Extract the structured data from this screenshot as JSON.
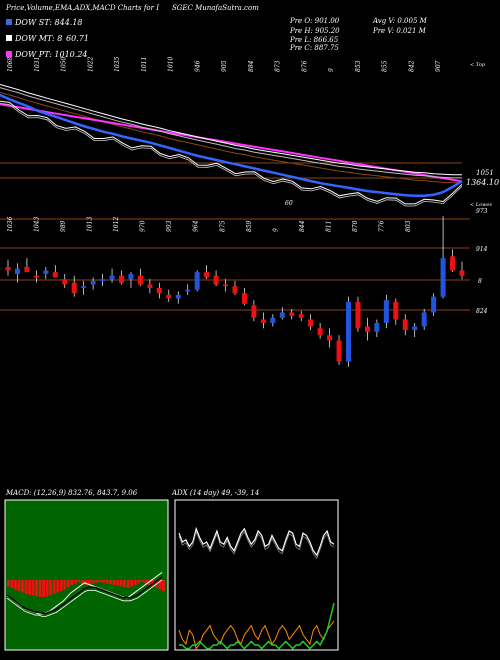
{
  "header": {
    "title": "Price,Volume,EMA,ADX,MACD Charts for I",
    "site": "SGEC MunafaSutra.com"
  },
  "legend": [
    {
      "label": "DOW ST: 844.18",
      "value": "",
      "color": "#3a6ae0"
    },
    {
      "label": "DOW MT: 8",
      "value": "60.71",
      "color": "#ffffff"
    },
    {
      "label": "DOW PT: 1010.24",
      "value": "",
      "color": "#ff33ff"
    }
  ],
  "info": {
    "prev_open": "Pre O: 901.00",
    "prev_high": "Pre H: 905.20",
    "prev_low": "Pre L: 866.65",
    "prev_close": "Pre C: 887.75",
    "avg_vol": "Avg V: 0.005 M",
    "prev_vol": "Pre V: 0.021 M"
  },
  "colors": {
    "bull": "#2255dd",
    "bear": "#ee1111",
    "level_line": "#8b4513",
    "ma_short": "#3366ff",
    "ma_mid": "#ffffff",
    "ma_long": "#ff33ff",
    "ma_brown": "#8b4513",
    "adx_pos": "#ffffff",
    "adx_neg": "#ff8c00",
    "adx_green": "#22cc22"
  },
  "chart_data": [
    {
      "type": "line",
      "title": "EMA",
      "top_labels": [
        "1068",
        "1031",
        "1050",
        "1022",
        "1035",
        "1011",
        "1010",
        "946",
        "905",
        "884",
        "873",
        "876",
        "9",
        "853",
        "855",
        "842",
        "907"
      ],
      "edge_label": "< Top",
      "y_labels": [
        "1051",
        "1364.10",
        "60"
      ],
      "series": [
        {
          "name": "DOW PT",
          "values": [
            1012,
            1009,
            1006,
            1003,
            1000,
            997,
            994,
            991,
            988,
            985,
            982,
            979,
            976,
            973,
            970,
            967,
            964,
            961,
            958,
            955,
            952,
            949,
            946,
            943,
            940,
            937,
            934,
            931,
            928,
            925,
            922,
            919,
            916,
            913,
            910,
            907,
            904,
            901,
            898,
            895,
            892,
            889,
            886,
            883,
            880,
            877,
            874,
            871,
            868,
            865
          ]
        },
        {
          "name": "DOW MT",
          "values": [
            1040,
            1035,
            1030,
            1024,
            1019,
            1014,
            1009,
            1004,
            999,
            994,
            989,
            984,
            979,
            974,
            970,
            965,
            961,
            957,
            952,
            948,
            944,
            940,
            936,
            932,
            928,
            924,
            921,
            917,
            914,
            911,
            908,
            905,
            902,
            899,
            896,
            893,
            890,
            888,
            885,
            883,
            881,
            879,
            877,
            875,
            873,
            872,
            870,
            869,
            868,
            868
          ]
        },
        {
          "name": "DOW ST",
          "values": [
            1020,
            1012,
            1005,
            998,
            990,
            984,
            978,
            972,
            966,
            960,
            955,
            950,
            946,
            941,
            937,
            933,
            929,
            924,
            919,
            914,
            909,
            904,
            900,
            896,
            892,
            888,
            884,
            880,
            876,
            872,
            868,
            864,
            860,
            856,
            852,
            849,
            846,
            843,
            840,
            837,
            835,
            833,
            831,
            829,
            828,
            828,
            830,
            835,
            845,
            856
          ]
        }
      ]
    },
    {
      "type": "bar",
      "title": "Price",
      "top_labels": [
        "1036",
        "1043",
        "989",
        "1013",
        "1012",
        "970",
        "993",
        "964",
        "875",
        "859",
        "9",
        "844",
        "811",
        "870",
        "776",
        "803"
      ],
      "edge_label": "< Lowes",
      "y_labels": [
        "973",
        "914",
        "8",
        "824"
      ],
      "candles": [
        {
          "o": 920,
          "h": 928,
          "l": 910,
          "c": 916
        },
        {
          "o": 912,
          "h": 924,
          "l": 902,
          "c": 918
        },
        {
          "o": 920,
          "h": 930,
          "l": 914,
          "c": 914
        },
        {
          "o": 910,
          "h": 916,
          "l": 902,
          "c": 908
        },
        {
          "o": 912,
          "h": 920,
          "l": 906,
          "c": 916
        },
        {
          "o": 914,
          "h": 922,
          "l": 908,
          "c": 908
        },
        {
          "o": 906,
          "h": 912,
          "l": 896,
          "c": 900
        },
        {
          "o": 902,
          "h": 910,
          "l": 886,
          "c": 890
        },
        {
          "o": 896,
          "h": 904,
          "l": 888,
          "c": 898
        },
        {
          "o": 900,
          "h": 908,
          "l": 894,
          "c": 904
        },
        {
          "o": 904,
          "h": 912,
          "l": 898,
          "c": 906
        },
        {
          "o": 906,
          "h": 918,
          "l": 902,
          "c": 910
        },
        {
          "o": 910,
          "h": 916,
          "l": 900,
          "c": 902
        },
        {
          "o": 906,
          "h": 914,
          "l": 896,
          "c": 912
        },
        {
          "o": 910,
          "h": 918,
          "l": 898,
          "c": 900
        },
        {
          "o": 900,
          "h": 906,
          "l": 890,
          "c": 896
        },
        {
          "o": 896,
          "h": 902,
          "l": 884,
          "c": 890
        },
        {
          "o": 888,
          "h": 894,
          "l": 880,
          "c": 884
        },
        {
          "o": 884,
          "h": 892,
          "l": 878,
          "c": 888
        },
        {
          "o": 892,
          "h": 900,
          "l": 888,
          "c": 894
        },
        {
          "o": 894,
          "h": 916,
          "l": 892,
          "c": 914
        },
        {
          "o": 914,
          "h": 922,
          "l": 906,
          "c": 908
        },
        {
          "o": 910,
          "h": 916,
          "l": 898,
          "c": 900
        },
        {
          "o": 900,
          "h": 906,
          "l": 892,
          "c": 898
        },
        {
          "o": 898,
          "h": 904,
          "l": 888,
          "c": 890
        },
        {
          "o": 890,
          "h": 896,
          "l": 876,
          "c": 878
        },
        {
          "o": 876,
          "h": 882,
          "l": 858,
          "c": 862
        },
        {
          "o": 860,
          "h": 868,
          "l": 850,
          "c": 856
        },
        {
          "o": 856,
          "h": 866,
          "l": 852,
          "c": 862
        },
        {
          "o": 862,
          "h": 874,
          "l": 860,
          "c": 868
        },
        {
          "o": 868,
          "h": 872,
          "l": 860,
          "c": 864
        },
        {
          "o": 866,
          "h": 870,
          "l": 858,
          "c": 862
        },
        {
          "o": 860,
          "h": 866,
          "l": 848,
          "c": 852
        },
        {
          "o": 850,
          "h": 856,
          "l": 838,
          "c": 842
        },
        {
          "o": 842,
          "h": 850,
          "l": 828,
          "c": 836
        },
        {
          "o": 836,
          "h": 842,
          "l": 808,
          "c": 812
        },
        {
          "o": 812,
          "h": 886,
          "l": 806,
          "c": 880
        },
        {
          "o": 880,
          "h": 886,
          "l": 846,
          "c": 850
        },
        {
          "o": 852,
          "h": 862,
          "l": 836,
          "c": 846
        },
        {
          "o": 846,
          "h": 860,
          "l": 840,
          "c": 856
        },
        {
          "o": 856,
          "h": 888,
          "l": 850,
          "c": 882
        },
        {
          "o": 880,
          "h": 884,
          "l": 854,
          "c": 860
        },
        {
          "o": 860,
          "h": 866,
          "l": 842,
          "c": 848
        },
        {
          "o": 848,
          "h": 856,
          "l": 840,
          "c": 852
        },
        {
          "o": 852,
          "h": 872,
          "l": 848,
          "c": 868
        },
        {
          "o": 868,
          "h": 890,
          "l": 864,
          "c": 886
        },
        {
          "o": 886,
          "h": 978,
          "l": 884,
          "c": 930
        },
        {
          "o": 932,
          "h": 940,
          "l": 914,
          "c": 916
        },
        {
          "o": 916,
          "h": 926,
          "l": 906,
          "c": 910
        }
      ]
    },
    {
      "type": "area",
      "title": "MACD",
      "header_text": "MACD:                     (12,26,9) 832.76, 843.7, 9.06",
      "series": [
        {
          "name": "MACD",
          "values": [
            -6,
            -8,
            -10,
            -12,
            -14,
            -16,
            -17,
            -18,
            -19,
            -20,
            -20,
            -19,
            -18,
            -16,
            -14,
            -12,
            -10,
            -7,
            -4,
            -2,
            0,
            2,
            4,
            3,
            2,
            1,
            0,
            -1,
            -2,
            -3,
            -4,
            -5,
            -6,
            -7,
            -8,
            -6,
            -4,
            -2,
            0,
            2,
            4,
            6,
            8,
            10,
            12
          ]
        },
        {
          "name": "Signal",
          "values": [
            -4,
            -6,
            -8,
            -10,
            -12,
            -14,
            -15,
            -16,
            -17,
            -17,
            -18,
            -18,
            -17,
            -16,
            -15,
            -13,
            -11,
            -9,
            -7,
            -5,
            -3,
            -1,
            1,
            2,
            2,
            2,
            1,
            0,
            -1,
            -2,
            -3,
            -4,
            -5,
            -6,
            -6,
            -6,
            -5,
            -4,
            -2,
            0,
            2,
            4,
            6,
            8,
            10
          ]
        },
        {
          "name": "Histogram",
          "values": [
            -2,
            -2,
            -2,
            -2,
            -2,
            -2,
            -2,
            -2,
            -2,
            -3,
            -2,
            -1,
            -1,
            0,
            1,
            1,
            1,
            2,
            3,
            3,
            3,
            3,
            3,
            1,
            0,
            -1,
            -1,
            -1,
            -1,
            -1,
            -1,
            -1,
            -1,
            -1,
            -2,
            0,
            1,
            2,
            2,
            2,
            2,
            2,
            2,
            2,
            2
          ]
        }
      ]
    },
    {
      "type": "line",
      "title": "ADX",
      "header_text": "ADX                    (14 day) 49, -39, 14",
      "series": [
        {
          "name": "+DI",
          "values": [
            38,
            30,
            32,
            26,
            30,
            42,
            34,
            28,
            30,
            24,
            32,
            40,
            30,
            28,
            34,
            26,
            22,
            30,
            38,
            42,
            34,
            28,
            32,
            40,
            36,
            26,
            28,
            36,
            30,
            24,
            22,
            32,
            40,
            38,
            28,
            26,
            38,
            36,
            30,
            22,
            18,
            26,
            36,
            40,
            30,
            28
          ]
        },
        {
          "name": "-DI",
          "values": [
            -12,
            -14,
            -15,
            -12,
            -13,
            -16,
            -15,
            -13,
            -12,
            -11,
            -13,
            -14,
            -15,
            -13,
            -12,
            -11,
            -12,
            -14,
            -15,
            -13,
            -12,
            -11,
            -13,
            -14,
            -12,
            -11,
            -13,
            -15,
            -14,
            -12,
            -11,
            -12,
            -14,
            -13,
            -12,
            -11,
            -13,
            -14,
            -15,
            -12,
            -11,
            -13,
            -14,
            -12,
            -11,
            -10
          ]
        },
        {
          "name": "ADX",
          "values": [
            -20,
            -20,
            -21,
            -21,
            -20,
            -20,
            -19,
            -20,
            -21,
            -21,
            -20,
            -20,
            -19,
            -20,
            -21,
            -20,
            -20,
            -19,
            -20,
            -21,
            -20,
            -19,
            -20,
            -20,
            -21,
            -20,
            -19,
            -20,
            -20,
            -21,
            -20,
            -19,
            -20,
            -21,
            -20,
            -20,
            -19,
            -20,
            -21,
            -20,
            -19,
            -20,
            -18,
            -16,
            -12,
            -8
          ]
        }
      ]
    }
  ]
}
